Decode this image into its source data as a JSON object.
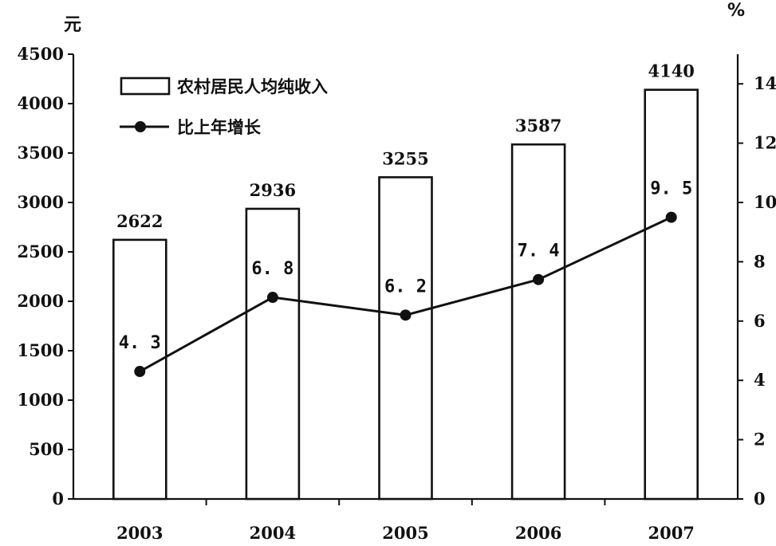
{
  "chart_data": {
    "type": "bar",
    "categories": [
      "2003",
      "2004",
      "2005",
      "2006",
      "2007"
    ],
    "series": [
      {
        "name": "农村居民人均纯收入",
        "type": "bar",
        "axis": "left",
        "values": [
          2622,
          2936,
          3255,
          3587,
          4140
        ],
        "labels": [
          "2622",
          "2936",
          "3255",
          "3587",
          "4140"
        ]
      },
      {
        "name": "比上年增长",
        "type": "line",
        "axis": "right",
        "values": [
          4.3,
          6.8,
          6.2,
          7.4,
          9.5
        ],
        "labels": [
          "4. 3",
          "6. 8",
          "6. 2",
          "7. 4",
          "9. 5"
        ]
      }
    ],
    "y_left": {
      "unit": "元",
      "ylim": [
        0,
        4500
      ],
      "ticks": [
        0,
        500,
        1000,
        1500,
        2000,
        2500,
        3000,
        3500,
        4000,
        4500
      ],
      "tick_labels": [
        "0",
        "500",
        "1000",
        "1500",
        "2000",
        "2500",
        "3000",
        "3500",
        "4000",
        "4500"
      ]
    },
    "y_right": {
      "unit": "%",
      "ylim": [
        0,
        15
      ],
      "ticks": [
        0,
        2,
        4,
        6,
        8,
        10,
        12,
        14
      ],
      "tick_labels": [
        "0",
        "2",
        "4",
        "6",
        "8",
        "10",
        "12",
        "14"
      ]
    },
    "legend": {
      "placement": "top-left",
      "entries": [
        "农村居民人均纯收入",
        "比上年增长"
      ]
    },
    "grid": false,
    "title": "",
    "xlabel": ""
  }
}
